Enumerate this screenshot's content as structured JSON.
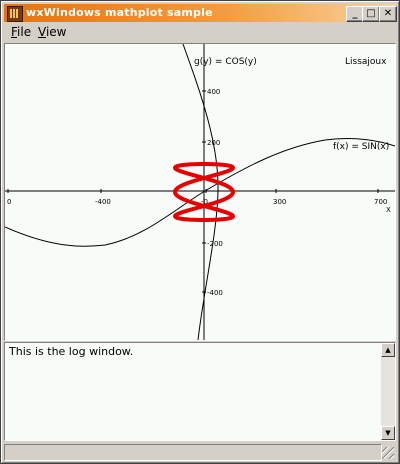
{
  "window": {
    "title": "wxWindows mathplot sample",
    "minimize_glyph": "_",
    "maximize_glyph": "□",
    "close_glyph": "✕"
  },
  "menu": [
    {
      "label": "File",
      "accel": "F",
      "rest": "ile"
    },
    {
      "label": "View",
      "accel": "V",
      "rest": "iew"
    }
  ],
  "plot": {
    "cos_label": "g(y) = COS(y)",
    "sin_label": "f(x) = SIN(x)",
    "lissajoux_label": "Lissajoux",
    "x_axis_label": "X",
    "x_ticks": [
      "0",
      "-400",
      "-0",
      "300",
      "700"
    ],
    "y_ticks": [
      "400",
      "200",
      "-200",
      "-400"
    ],
    "lissajoux_color": "#e80000"
  },
  "log": {
    "text": "This is the log window.",
    "scroll_up_glyph": "▲",
    "scroll_down_glyph": "▼"
  },
  "statusbar": {
    "text": ""
  }
}
